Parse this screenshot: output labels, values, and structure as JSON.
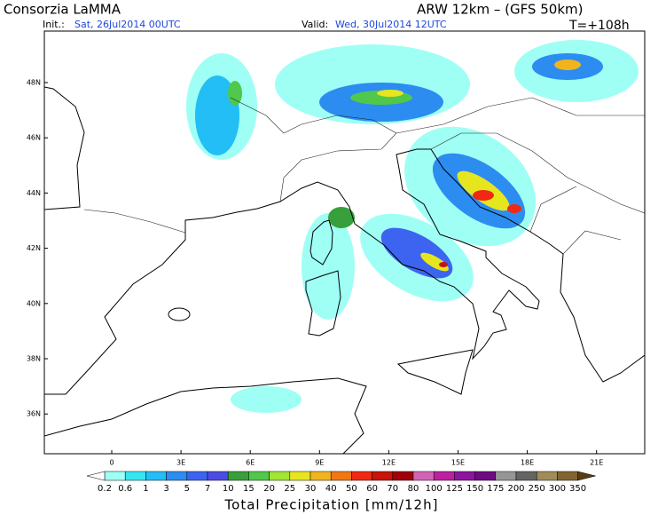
{
  "header": {
    "title": "Consorzia LaMMA",
    "model": "ARW 12km – (GFS 50km)",
    "init_label": "Init.:",
    "init": "Sat, 26Jul2014 00UTC",
    "valid_label": "Valid:",
    "valid": "Wed, 30Jul2014 12UTC",
    "lead": "T=+108h"
  },
  "map": {
    "lat_labels": [
      "48N",
      "46N",
      "44N",
      "42N",
      "40N",
      "38N",
      "36N"
    ],
    "lon_labels": [
      "0",
      "3E",
      "6E",
      "9E",
      "12E",
      "15E",
      "18E",
      "21E"
    ]
  },
  "colorbar": {
    "title": "Total Precipitation [mm/12h]",
    "levels": [
      0.2,
      0.6,
      1,
      3,
      5,
      7,
      10,
      15,
      20,
      25,
      30,
      40,
      50,
      60,
      70,
      80,
      100,
      125,
      150,
      175,
      200,
      250,
      300,
      350
    ],
    "colors": [
      "#9ffff5",
      "#33e6f0",
      "#22bef5",
      "#2c8cf0",
      "#3c64f0",
      "#4b4be6",
      "#37a03c",
      "#50c84b",
      "#a0e632",
      "#e6e61e",
      "#f0b41e",
      "#f07814",
      "#f02814",
      "#c8140a",
      "#a0000a",
      "#d264b4",
      "#be1ea0",
      "#8c14a0",
      "#6e0a82",
      "#969696",
      "#646464",
      "#a08c5a",
      "#826432"
    ],
    "under_color": "#ffffff",
    "over_color": "#5a3c14"
  }
}
